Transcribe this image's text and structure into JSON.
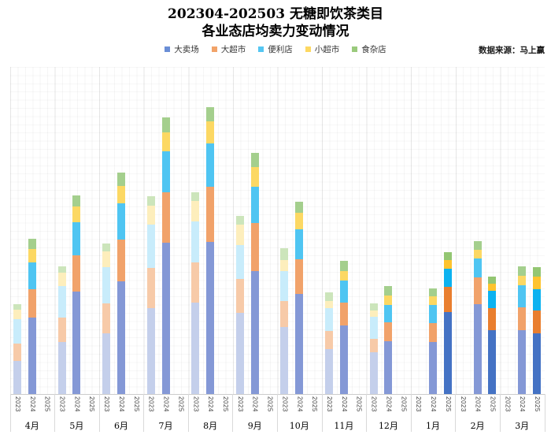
{
  "title": {
    "line1": "202304-202503 无糖即饮茶类目",
    "line2": "各业态店均卖力变动情况"
  },
  "source_note": "数据来源：马上赢",
  "legend": {
    "items": [
      {
        "label": "大卖场",
        "color": "#6a8ed6"
      },
      {
        "label": "大超市",
        "color": "#f2a369"
      },
      {
        "label": "便利店",
        "color": "#55c6f2"
      },
      {
        "label": "小超市",
        "color": "#fdd862"
      },
      {
        "label": "食杂店",
        "color": "#9aca7c"
      }
    ]
  },
  "chart_data": {
    "type": "bar",
    "stacked": true,
    "title": "202304-202503 无糖即饮茶类目 各业态店均卖力变动情况",
    "xlabel": "",
    "ylabel": "",
    "y_axis_shown": false,
    "value_note": "店均卖力相对值：图中未显示数值轴，数值为按条形高度估算的相对单位",
    "legend_position": "top",
    "grid": "vertical-minor",
    "series_names": [
      "大卖场",
      "大超市",
      "便利店",
      "小超市",
      "食杂店"
    ],
    "year_ticks": [
      "2023",
      "2024",
      "2025"
    ],
    "colors_by_year": {
      "2023": [
        "#c4cfeb",
        "#f7caa8",
        "#c8ecfb",
        "#fdeebc",
        "#cce5bb"
      ],
      "2024": [
        "#8498d6",
        "#f1a26a",
        "#4fc5f2",
        "#fcd863",
        "#a4cf8d"
      ],
      "2025": [
        "#4472c4",
        "#e97e2e",
        "#0cb2f0",
        "#fec32e",
        "#93c672"
      ]
    },
    "months": [
      {
        "label": "4月",
        "bars": [
          {
            "year": "2023",
            "values": [
              42,
              22,
              31,
              12,
              7
            ]
          },
          {
            "year": "2024",
            "values": [
              97,
              36,
              34,
              17,
              13
            ]
          }
        ]
      },
      {
        "label": "5月",
        "bars": [
          {
            "year": "2023",
            "values": [
              66,
              31,
              40,
              17,
              8
            ]
          },
          {
            "year": "2024",
            "values": [
              130,
              46,
              42,
              20,
              14
            ]
          }
        ]
      },
      {
        "label": "6月",
        "bars": [
          {
            "year": "2023",
            "values": [
              77,
              38,
              46,
              20,
              10
            ]
          },
          {
            "year": "2024",
            "values": [
              143,
              53,
              46,
              22,
              17
            ]
          }
        ]
      },
      {
        "label": "7月",
        "bars": [
          {
            "year": "2023",
            "values": [
              109,
              51,
              55,
              24,
              12
            ]
          },
          {
            "year": "2024",
            "values": [
              192,
              64,
              52,
              24,
              19
            ]
          }
        ]
      },
      {
        "label": "8月",
        "bars": [
          {
            "year": "2023",
            "values": [
              116,
              51,
              52,
              26,
              11
            ]
          },
          {
            "year": "2024",
            "values": [
              193,
              70,
              55,
              28,
              18
            ]
          }
        ]
      },
      {
        "label": "9月",
        "bars": [
          {
            "year": "2023",
            "values": [
              103,
              43,
              43,
              26,
              11
            ]
          },
          {
            "year": "2024",
            "values": [
              156,
              61,
              46,
              25,
              18
            ]
          }
        ]
      },
      {
        "label": "10月",
        "bars": [
          {
            "year": "2023",
            "values": [
              85,
              33,
              38,
              14,
              15
            ]
          },
          {
            "year": "2024",
            "values": [
              127,
              44,
              38,
              21,
              14
            ]
          }
        ]
      },
      {
        "label": "11月",
        "bars": [
          {
            "year": "2023",
            "values": [
              57,
              23,
              29,
              9,
              11
            ]
          },
          {
            "year": "2024",
            "values": [
              87,
              29,
              28,
              12,
              13
            ]
          }
        ]
      },
      {
        "label": "12月",
        "bars": [
          {
            "year": "2023",
            "values": [
              53,
              17,
              28,
              8,
              9
            ]
          },
          {
            "year": "2024",
            "values": [
              67,
              24,
              22,
              12,
              12
            ]
          }
        ]
      },
      {
        "label": "1月",
        "bars": [
          {
            "year": "2024",
            "values": [
              66,
              24,
              23,
              11,
              10
            ]
          },
          {
            "year": "2025",
            "values": [
              104,
              32,
              23,
              11,
              10
            ]
          }
        ]
      },
      {
        "label": "2月",
        "bars": [
          {
            "year": "2024",
            "values": [
              114,
              34,
              24,
              11,
              11
            ]
          },
          {
            "year": "2025",
            "values": [
              81,
              28,
              22,
              9,
              9
            ]
          }
        ]
      },
      {
        "label": "3月",
        "bars": [
          {
            "year": "2024",
            "values": [
              81,
              29,
              28,
              12,
              12
            ]
          },
          {
            "year": "2025",
            "values": [
              77,
              29,
              27,
              16,
              12
            ]
          }
        ]
      }
    ]
  }
}
